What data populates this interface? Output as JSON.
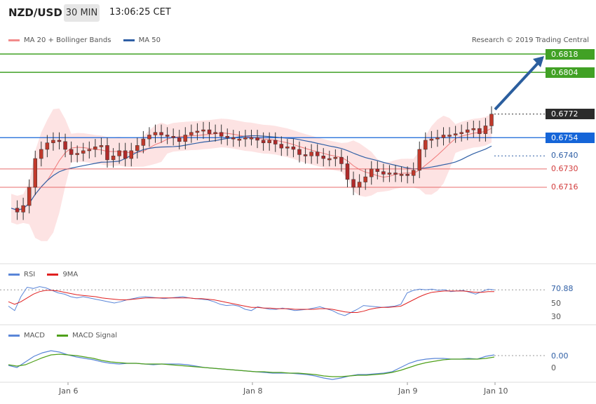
{
  "header": {
    "symbol": "NZD/USD",
    "timeframe": "30 MIN",
    "time": "13:06:25 CET"
  },
  "legend_main": {
    "bb_label": "MA 20 + Bollinger Bands",
    "ma50_label": "MA 50",
    "bb_color": "#f28b8b",
    "ma50_color": "#2f5fa5"
  },
  "copyright": "Research © 2019 Trading Central",
  "price_levels": {
    "target_2": "0.6818",
    "target_1": "0.6804",
    "last": "0.6772",
    "pivot": "0.6754",
    "support_1": "0.6740",
    "support_2": "0.6730",
    "support_3": "0.6716"
  },
  "legend_rsi": {
    "rsi_label": "RSI",
    "ma_label": "9MA",
    "rsi_color": "#5a86d8",
    "ma_color": "#e02020"
  },
  "rsi_scale": {
    "current": "70.88",
    "mid": "50",
    "low": "30"
  },
  "legend_macd": {
    "macd_label": "MACD",
    "signal_label": "MACD Signal",
    "macd_color": "#5a86d8",
    "signal_color": "#4fa01a"
  },
  "macd_scale": {
    "current": "0.00",
    "zero": "0"
  },
  "x_axis": {
    "labels": [
      "Jan 6",
      "Jan 8",
      "Jan 9",
      "Jan 10"
    ]
  },
  "colors": {
    "up": "#c0392b",
    "down": "#c0392b",
    "target": "#41a125",
    "pivot": "#1565d8",
    "support": "#e35a5a",
    "arrow": "#2b5e9e"
  },
  "chart_data": [
    {
      "type": "candlestick",
      "title": "NZD/USD 30 MIN",
      "ylim": [
        0.669,
        0.683
      ],
      "x_labels": [
        "Jan 6",
        "Jan 8",
        "Jan 9",
        "Jan 10"
      ],
      "close_path": [
        0.67,
        0.6697,
        0.6702,
        0.6716,
        0.6738,
        0.6745,
        0.675,
        0.6752,
        0.6751,
        0.6745,
        0.6741,
        0.6742,
        0.6744,
        0.6745,
        0.6747,
        0.6748,
        0.6737,
        0.674,
        0.6744,
        0.6738,
        0.6744,
        0.6748,
        0.6753,
        0.6756,
        0.6758,
        0.6756,
        0.6755,
        0.6754,
        0.6751,
        0.6756,
        0.6758,
        0.6759,
        0.676,
        0.6757,
        0.6758,
        0.6755,
        0.6754,
        0.6753,
        0.6753,
        0.6754,
        0.6754,
        0.6752,
        0.675,
        0.6752,
        0.6749,
        0.6746,
        0.6747,
        0.6745,
        0.6741,
        0.674,
        0.6743,
        0.674,
        0.6738,
        0.6738,
        0.6739,
        0.6734,
        0.6722,
        0.6716,
        0.672,
        0.6724,
        0.673,
        0.6728,
        0.6726,
        0.6727,
        0.6726,
        0.6726,
        0.6725,
        0.6729,
        0.6745,
        0.6752,
        0.6753,
        0.6754,
        0.6756,
        0.6756,
        0.6757,
        0.6758,
        0.676,
        0.6761,
        0.6757,
        0.6763,
        0.6772
      ],
      "pivot": 0.6754,
      "targets": [
        0.6804,
        0.6818
      ],
      "supports": [
        0.674,
        0.673,
        0.6716
      ],
      "last": 0.6772
    },
    {
      "type": "line",
      "title": "RSI",
      "ylim": [
        20,
        90
      ],
      "ticks": [
        30,
        50,
        70.88
      ],
      "series": [
        {
          "name": "RSI",
          "values": [
            45,
            38,
            60,
            75,
            73,
            76,
            74,
            70,
            66,
            64,
            60,
            58,
            60,
            58,
            56,
            54,
            52,
            50,
            52,
            55,
            57,
            59,
            60,
            59,
            58,
            57,
            58,
            59,
            60,
            58,
            57,
            56,
            55,
            52,
            48,
            46,
            47,
            45,
            40,
            38,
            44,
            42,
            40,
            40,
            42,
            40,
            38,
            39,
            40,
            42,
            44,
            41,
            38,
            33,
            30,
            35,
            40,
            46,
            45,
            44,
            43,
            44,
            45,
            48,
            66,
            70,
            72,
            71,
            72,
            70,
            71,
            68,
            69,
            70,
            67,
            64,
            68,
            72,
            70.88
          ]
        },
        {
          "name": "9MA",
          "values": [
            52,
            48,
            52,
            58,
            64,
            68,
            70,
            70,
            69,
            67,
            65,
            63,
            62,
            61,
            60,
            58,
            57,
            56,
            55,
            55,
            56,
            57,
            58,
            58,
            58,
            58,
            58,
            58,
            58,
            58,
            57,
            57,
            56,
            55,
            53,
            51,
            49,
            47,
            45,
            43,
            43,
            42,
            42,
            41,
            41,
            41,
            40,
            40,
            40,
            40,
            41,
            41,
            40,
            38,
            36,
            35,
            35,
            37,
            40,
            42,
            43,
            43,
            44,
            45,
            50,
            55,
            60,
            64,
            67,
            68,
            69,
            69,
            69,
            69,
            68,
            67,
            67,
            68,
            68
          ]
        }
      ]
    },
    {
      "type": "line",
      "title": "MACD",
      "ticks": [
        0,
        0.0
      ],
      "series": [
        {
          "name": "MACD",
          "values": [
            0.0003,
            0.0,
            0.0008,
            0.0016,
            0.0021,
            0.0024,
            0.0022,
            0.0018,
            0.0015,
            0.0013,
            0.0011,
            0.0008,
            0.0006,
            0.0005,
            0.0006,
            0.0006,
            0.0005,
            0.0004,
            0.0005,
            0.0005,
            0.0005,
            0.0004,
            0.0002,
            0.0,
            -0.0001,
            -0.0002,
            -0.0003,
            -0.0004,
            -0.0005,
            -0.0006,
            -0.0007,
            -0.0008,
            -0.0008,
            -0.0008,
            -0.0009,
            -0.001,
            -0.0012,
            -0.0015,
            -0.0017,
            -0.0015,
            -0.0012,
            -0.001,
            -0.001,
            -0.0009,
            -0.0008,
            -0.0006,
            0.0,
            0.0006,
            0.001,
            0.0012,
            0.0013,
            0.0013,
            0.0012,
            0.0012,
            0.0013,
            0.0012,
            0.0016,
            0.0018
          ]
        },
        {
          "name": "MACD Signal",
          "values": [
            0.0004,
            0.0002,
            0.0004,
            0.0009,
            0.0014,
            0.0018,
            0.0019,
            0.0018,
            0.0017,
            0.0015,
            0.0013,
            0.001,
            0.0008,
            0.0007,
            0.0006,
            0.0006,
            0.0005,
            0.0005,
            0.0005,
            0.0004,
            0.0003,
            0.0002,
            0.0001,
            0.0,
            -0.0001,
            -0.0002,
            -0.0003,
            -0.0004,
            -0.0005,
            -0.0006,
            -0.0006,
            -0.0007,
            -0.0007,
            -0.0008,
            -0.0008,
            -0.0009,
            -0.001,
            -0.0012,
            -0.0013,
            -0.0013,
            -0.0012,
            -0.0011,
            -0.0011,
            -0.001,
            -0.0009,
            -0.0007,
            -0.0004,
            0.0,
            0.0004,
            0.0007,
            0.0009,
            0.0011,
            0.0012,
            0.0012,
            0.0012,
            0.0012,
            0.0013,
            0.0015
          ]
        }
      ]
    }
  ]
}
